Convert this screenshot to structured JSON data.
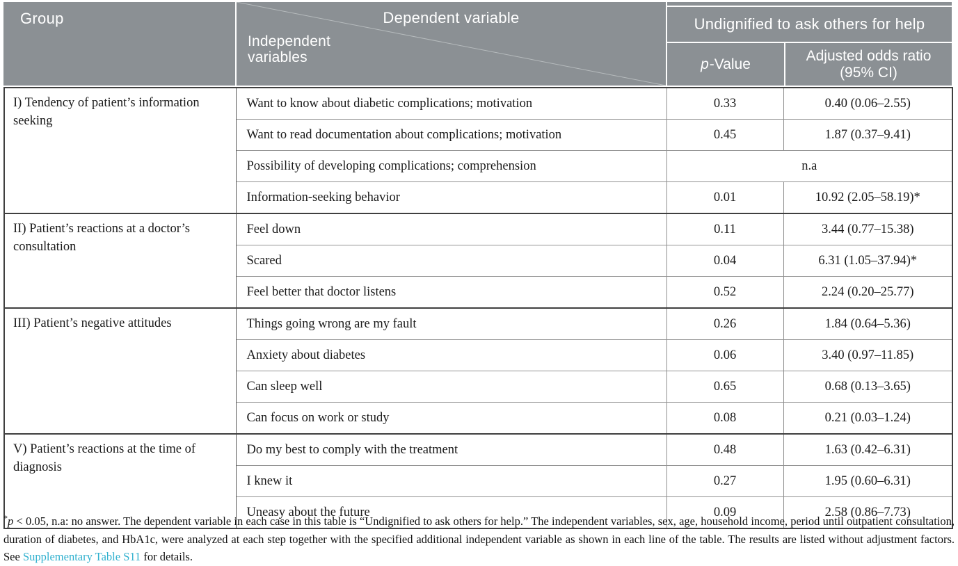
{
  "table": {
    "header": {
      "group": "Group",
      "dependent_variable": "Dependent variable",
      "independent_variables": "Independent variables",
      "spanner": "Undignified to ask others for help",
      "p_col_italic": "p",
      "p_col_rest": "-Value",
      "or_col": "Adjusted odds ratio (95% CI)"
    },
    "groups": [
      {
        "label": "I) Tendency of patient’s information seeking",
        "rows": [
          {
            "variable": "Want to know about diabetic complications; motivation",
            "p": "0.33",
            "or": "0.40 (0.06–2.55)"
          },
          {
            "variable": "Want to read documentation about complications; motivation",
            "p": "0.45",
            "or": "1.87 (0.37–9.41)"
          },
          {
            "variable": "Possibility of developing complications; comprehension",
            "merged": "n.a"
          },
          {
            "variable": "Information-seeking behavior",
            "p": "0.01",
            "or": "10.92 (2.05–58.19)*"
          }
        ]
      },
      {
        "label": "II) Patient’s reactions at a doctor’s consultation",
        "rows": [
          {
            "variable": "Feel down",
            "p": "0.11",
            "or": "3.44 (0.77–15.38)"
          },
          {
            "variable": "Scared",
            "p": "0.04",
            "or": "6.31 (1.05–37.94)*"
          },
          {
            "variable": "Feel better that doctor listens",
            "p": "0.52",
            "or": "2.24 (0.20–25.77)"
          }
        ]
      },
      {
        "label": "III) Patient’s negative attitudes",
        "rows": [
          {
            "variable": "Things going wrong are my fault",
            "p": "0.26",
            "or": "1.84 (0.64–5.36)"
          },
          {
            "variable": "Anxiety about diabetes",
            "p": "0.06",
            "or": "3.40 (0.97–11.85)"
          },
          {
            "variable": "Can sleep well",
            "p": "0.65",
            "or": "0.68 (0.13–3.65)"
          },
          {
            "variable": "Can focus on work or study",
            "p": "0.08",
            "or": "0.21 (0.03–1.24)"
          }
        ]
      },
      {
        "label": "V) Patient’s reactions at the time of diagnosis",
        "rows": [
          {
            "variable": "Do my best to comply with the treatment",
            "p": "0.48",
            "or": "1.63 (0.42–6.31)"
          },
          {
            "variable": "I knew it",
            "p": "0.27",
            "or": "1.95 (0.60–6.31)"
          },
          {
            "variable": "Uneasy about the future",
            "p": "0.09",
            "or": "2.58 (0.86–7.73)"
          }
        ]
      }
    ]
  },
  "footnote": {
    "asterisk": "*",
    "p_italic": "p",
    "body": " < 0.05, n.a: no answer. The dependent variable in each case in this table is “Undignified to ask others for help.” The independent variables, sex, age, household income, period until outpatient consultation, duration of diabetes, and HbA1c, were analyzed at each step together with the specified additional independent variable as shown in each line of the table. The results are listed without adjustment factors. See ",
    "link_text": "Supplementary Table S11",
    "tail": " for details."
  },
  "colors": {
    "header_bg": "#8b9094",
    "header_text": "#ffffff",
    "link": "#2fb0ce",
    "border_dark": "#3f3f3f",
    "border_light": "#919191"
  }
}
